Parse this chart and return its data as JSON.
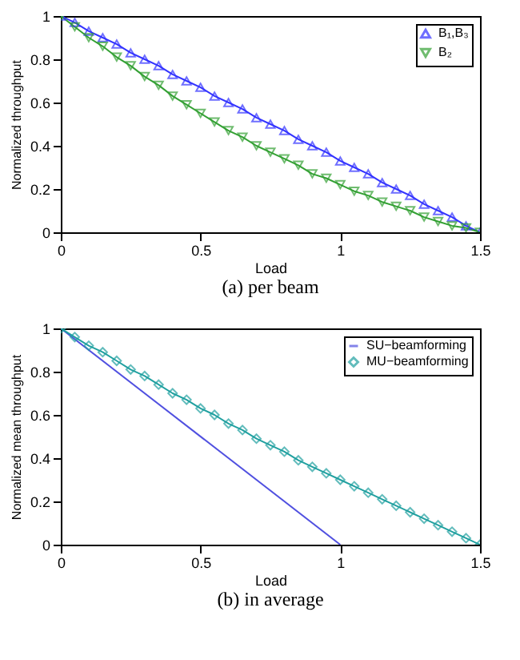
{
  "chart_data": [
    {
      "type": "line",
      "title": "(a) per beam",
      "xlabel": "Load",
      "ylabel": "Normalized throughput",
      "x": [
        0,
        0.05,
        0.1,
        0.15,
        0.2,
        0.25,
        0.3,
        0.35,
        0.4,
        0.45,
        0.5,
        0.55,
        0.6,
        0.65,
        0.7,
        0.75,
        0.8,
        0.85,
        0.9,
        0.95,
        1,
        1.05,
        1.1,
        1.15,
        1.2,
        1.25,
        1.3,
        1.35,
        1.4,
        1.45,
        1.5
      ],
      "series": [
        {
          "name": "B₁,B₃",
          "color": "#3333ff",
          "marker": "triangle",
          "values": [
            1,
            0.97,
            0.93,
            0.9,
            0.87,
            0.83,
            0.8,
            0.77,
            0.73,
            0.7,
            0.67,
            0.63,
            0.6,
            0.57,
            0.53,
            0.5,
            0.47,
            0.43,
            0.4,
            0.37,
            0.33,
            0.3,
            0.27,
            0.23,
            0.2,
            0.17,
            0.13,
            0.1,
            0.07,
            0.03,
            0
          ]
        },
        {
          "name": "B₂",
          "color": "#33a033",
          "marker": "triangle-down",
          "values": [
            1,
            0.95,
            0.9,
            0.86,
            0.81,
            0.77,
            0.72,
            0.68,
            0.63,
            0.59,
            0.55,
            0.51,
            0.47,
            0.44,
            0.4,
            0.37,
            0.34,
            0.31,
            0.27,
            0.25,
            0.22,
            0.19,
            0.17,
            0.14,
            0.12,
            0.1,
            0.07,
            0.05,
            0.03,
            0.02,
            0
          ]
        }
      ],
      "xlim": [
        0,
        1.5
      ],
      "xticks": [
        0,
        0.5,
        1,
        1.5
      ],
      "ylim": [
        0,
        1
      ],
      "yticks": [
        0,
        0.2,
        0.4,
        0.6,
        0.8,
        1
      ],
      "grid": false,
      "legend": "top right"
    },
    {
      "type": "line",
      "title": "(b) in average",
      "xlabel": "Load",
      "ylabel": "Normalized mean throughput",
      "x": [
        0,
        0.05,
        0.1,
        0.15,
        0.2,
        0.25,
        0.3,
        0.35,
        0.4,
        0.45,
        0.5,
        0.55,
        0.6,
        0.65,
        0.7,
        0.75,
        0.8,
        0.85,
        0.9,
        0.95,
        1,
        1.05,
        1.1,
        1.15,
        1.2,
        1.25,
        1.3,
        1.35,
        1.4,
        1.45,
        1.5
      ],
      "series": [
        {
          "name": "SU−beamforming",
          "color": "#5050e0",
          "marker": "none",
          "x": [
            0,
            1
          ],
          "values": [
            1,
            0
          ]
        },
        {
          "name": "MU−beamforming",
          "color": "#20a0a0",
          "marker": "diamond",
          "values": [
            1,
            0.96,
            0.92,
            0.89,
            0.85,
            0.81,
            0.78,
            0.74,
            0.7,
            0.67,
            0.63,
            0.6,
            0.56,
            0.53,
            0.49,
            0.46,
            0.43,
            0.39,
            0.36,
            0.33,
            0.3,
            0.27,
            0.24,
            0.21,
            0.18,
            0.15,
            0.12,
            0.09,
            0.06,
            0.03,
            0
          ]
        }
      ],
      "xlim": [
        0,
        1.5
      ],
      "xticks": [
        0,
        0.5,
        1,
        1.5
      ],
      "ylim": [
        0,
        1
      ],
      "yticks": [
        0,
        0.2,
        0.4,
        0.6,
        0.8,
        1
      ],
      "grid": false,
      "legend": "top right"
    }
  ]
}
